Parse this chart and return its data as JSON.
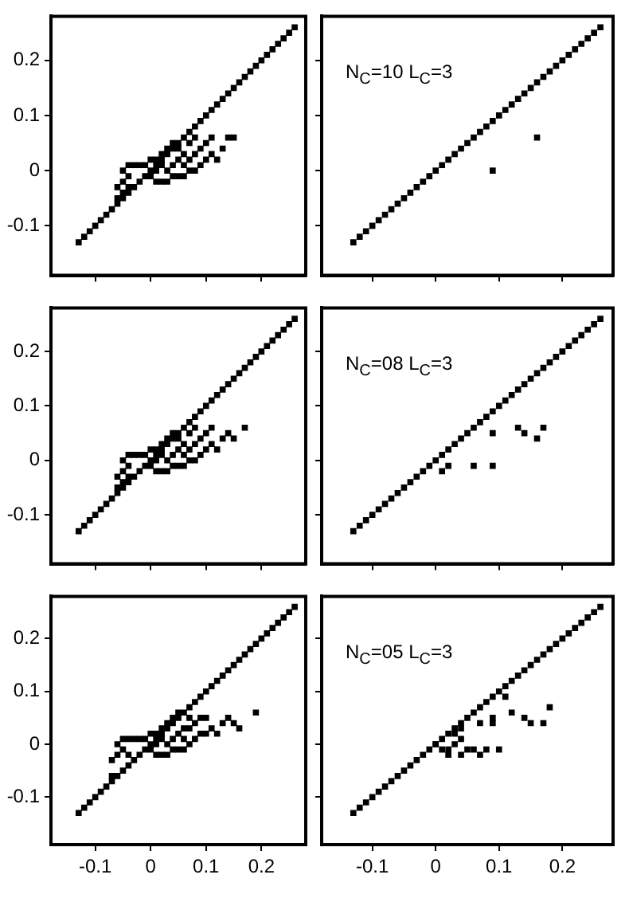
{
  "chart_data": [
    {
      "type": "scatter",
      "marker": "square",
      "tick_labels": "y",
      "grid": false,
      "xlim": [
        -0.18,
        0.28
      ],
      "ylim": [
        -0.19,
        0.28
      ],
      "xticks": [
        -0.1,
        0,
        0.1,
        0.2
      ],
      "yticks": [
        -0.1,
        0,
        0.1,
        0.2
      ],
      "series": [
        {
          "color": "#000000",
          "x": [
            -0.13,
            -0.12,
            -0.11,
            -0.1,
            -0.09,
            -0.08,
            -0.07,
            -0.06,
            -0.05,
            -0.04,
            -0.03,
            -0.02,
            -0.01,
            0,
            0.01,
            0.02,
            0.03,
            0.04,
            0.05,
            0.06,
            0.07,
            0.08,
            0.09,
            0.1,
            0.11,
            0.12,
            0.13,
            0.14,
            0.15,
            0.16,
            0.17,
            0.18,
            0.19,
            0.2,
            0.21,
            0.22,
            0.23,
            0.24,
            0.25,
            0.26,
            -0.06,
            -0.06,
            -0.05,
            -0.05,
            -0.05,
            -0.04,
            -0.04,
            -0.04,
            -0.03,
            -0.02,
            -0.01,
            0,
            0,
            0.01,
            0.01,
            0.01,
            0.02,
            0.02,
            0.02,
            0.03,
            0.03,
            0.03,
            0.04,
            0.04,
            0.04,
            0.05,
            0.05,
            0.05,
            0.06,
            0.06,
            0.06,
            0.07,
            0.07,
            0.07,
            0.08,
            0.08,
            0.08,
            0.09,
            0.09,
            0.1,
            0.1,
            0.11,
            0.11,
            0.12,
            0.13,
            0.14,
            0.15
          ],
          "values": [
            -0.13,
            -0.12,
            -0.11,
            -0.1,
            -0.09,
            -0.08,
            -0.07,
            -0.06,
            -0.05,
            -0.04,
            -0.03,
            -0.02,
            -0.01,
            0,
            0.01,
            0.02,
            0.03,
            0.04,
            0.05,
            0.06,
            0.07,
            0.08,
            0.09,
            0.1,
            0.11,
            0.12,
            0.13,
            0.14,
            0.15,
            0.16,
            0.17,
            0.18,
            0.19,
            0.2,
            0.21,
            0.22,
            0.23,
            0.24,
            0.25,
            0.26,
            -0.05,
            -0.03,
            -0.04,
            -0.02,
            0,
            -0.03,
            -0.01,
            0.01,
            0.01,
            0.01,
            0.01,
            -0.01,
            0.02,
            -0.02,
            0,
            0.02,
            -0.02,
            0.01,
            0.03,
            -0.02,
            0,
            0.04,
            -0.01,
            0.01,
            0.05,
            -0.01,
            0.02,
            0.04,
            -0.01,
            0.01,
            0.03,
            0,
            0.02,
            0.05,
            0,
            0.03,
            0.06,
            0.01,
            0.04,
            0.02,
            0.05,
            0.03,
            0.06,
            0.02,
            0.04,
            0.06,
            0.06
          ]
        }
      ]
    },
    {
      "type": "scatter",
      "marker": "square",
      "tick_labels": false,
      "grid": false,
      "xlim": [
        -0.18,
        0.28
      ],
      "ylim": [
        -0.19,
        0.28
      ],
      "xticks": [
        -0.1,
        0,
        0.1,
        0.2
      ],
      "yticks": [
        -0.1,
        0,
        0.1,
        0.2
      ],
      "annotations": [
        "N$_{C}$=10 L$_{C}$=3"
      ],
      "series": [
        {
          "color": "#000000",
          "x": [
            -0.13,
            -0.12,
            -0.11,
            -0.1,
            -0.09,
            -0.08,
            -0.07,
            -0.06,
            -0.05,
            -0.04,
            -0.03,
            -0.02,
            -0.01,
            0,
            0.01,
            0.02,
            0.03,
            0.04,
            0.05,
            0.06,
            0.07,
            0.08,
            0.09,
            0.1,
            0.11,
            0.12,
            0.13,
            0.14,
            0.15,
            0.16,
            0.17,
            0.18,
            0.19,
            0.2,
            0.21,
            0.22,
            0.23,
            0.24,
            0.25,
            0.26,
            0.09,
            0.16
          ],
          "values": [
            -0.13,
            -0.12,
            -0.11,
            -0.1,
            -0.09,
            -0.08,
            -0.07,
            -0.06,
            -0.05,
            -0.04,
            -0.03,
            -0.02,
            -0.01,
            0,
            0.01,
            0.02,
            0.03,
            0.04,
            0.05,
            0.06,
            0.07,
            0.08,
            0.09,
            0.1,
            0.11,
            0.12,
            0.13,
            0.14,
            0.15,
            0.16,
            0.17,
            0.18,
            0.19,
            0.2,
            0.21,
            0.22,
            0.23,
            0.24,
            0.25,
            0.26,
            0,
            0.06
          ]
        }
      ]
    },
    {
      "type": "scatter",
      "marker": "square",
      "tick_labels": "y",
      "grid": false,
      "xlim": [
        -0.18,
        0.28
      ],
      "ylim": [
        -0.19,
        0.28
      ],
      "xticks": [
        -0.1,
        0,
        0.1,
        0.2
      ],
      "yticks": [
        -0.1,
        0,
        0.1,
        0.2
      ],
      "series": [
        {
          "color": "#000000",
          "x": [
            -0.13,
            -0.12,
            -0.11,
            -0.1,
            -0.09,
            -0.08,
            -0.07,
            -0.06,
            -0.05,
            -0.04,
            -0.03,
            -0.02,
            -0.01,
            0,
            0.01,
            0.02,
            0.03,
            0.04,
            0.05,
            0.06,
            0.07,
            0.08,
            0.09,
            0.1,
            0.11,
            0.12,
            0.13,
            0.14,
            0.15,
            0.16,
            0.17,
            0.18,
            0.19,
            0.2,
            0.21,
            0.22,
            0.23,
            0.24,
            0.25,
            0.26,
            -0.06,
            -0.06,
            -0.05,
            -0.05,
            -0.05,
            -0.04,
            -0.04,
            -0.04,
            -0.03,
            -0.02,
            -0.01,
            0,
            0,
            0.01,
            0.01,
            0.01,
            0.02,
            0.02,
            0.02,
            0.03,
            0.03,
            0.03,
            0.04,
            0.04,
            0.04,
            0.05,
            0.05,
            0.05,
            0.06,
            0.06,
            0.06,
            0.07,
            0.07,
            0.07,
            0.08,
            0.08,
            0.08,
            0.09,
            0.09,
            0.1,
            0.1,
            0.11,
            0.11,
            0.12,
            0.13,
            0.14,
            0.15,
            0.17
          ],
          "values": [
            -0.13,
            -0.12,
            -0.11,
            -0.1,
            -0.09,
            -0.08,
            -0.07,
            -0.06,
            -0.05,
            -0.04,
            -0.03,
            -0.02,
            -0.01,
            0,
            0.01,
            0.02,
            0.03,
            0.04,
            0.05,
            0.06,
            0.07,
            0.08,
            0.09,
            0.1,
            0.11,
            0.12,
            0.13,
            0.14,
            0.15,
            0.16,
            0.17,
            0.18,
            0.19,
            0.2,
            0.21,
            0.22,
            0.23,
            0.24,
            0.25,
            0.26,
            -0.05,
            -0.03,
            -0.04,
            -0.02,
            0,
            -0.03,
            -0.01,
            0.01,
            0.01,
            0.01,
            0.01,
            -0.01,
            0.02,
            -0.02,
            0,
            0.02,
            -0.02,
            0.01,
            0.03,
            -0.02,
            0,
            0.04,
            -0.01,
            0.01,
            0.05,
            -0.01,
            0.02,
            0.04,
            -0.01,
            0.01,
            0.03,
            0,
            0.02,
            0.05,
            0,
            0.03,
            0.06,
            0.01,
            0.04,
            0.02,
            0.05,
            0.03,
            0.06,
            0.02,
            0.04,
            0.05,
            0.04,
            0.06
          ]
        }
      ]
    },
    {
      "type": "scatter",
      "marker": "square",
      "tick_labels": false,
      "grid": false,
      "xlim": [
        -0.18,
        0.28
      ],
      "ylim": [
        -0.19,
        0.28
      ],
      "xticks": [
        -0.1,
        0,
        0.1,
        0.2
      ],
      "yticks": [
        -0.1,
        0,
        0.1,
        0.2
      ],
      "annotations": [
        "N$_{C}$=08 L$_{C}$=3"
      ],
      "series": [
        {
          "color": "#000000",
          "x": [
            -0.13,
            -0.12,
            -0.11,
            -0.1,
            -0.09,
            -0.08,
            -0.07,
            -0.06,
            -0.05,
            -0.04,
            -0.03,
            -0.02,
            -0.01,
            0,
            0.01,
            0.02,
            0.03,
            0.04,
            0.05,
            0.06,
            0.07,
            0.08,
            0.09,
            0.1,
            0.11,
            0.12,
            0.13,
            0.14,
            0.15,
            0.16,
            0.17,
            0.18,
            0.19,
            0.2,
            0.21,
            0.22,
            0.23,
            0.24,
            0.25,
            0.26,
            0.01,
            0.02,
            0.06,
            0.09,
            0.09,
            0.13,
            0.14,
            0.16,
            0.17
          ],
          "values": [
            -0.13,
            -0.12,
            -0.11,
            -0.1,
            -0.09,
            -0.08,
            -0.07,
            -0.06,
            -0.05,
            -0.04,
            -0.03,
            -0.02,
            -0.01,
            0,
            0.01,
            0.02,
            0.03,
            0.04,
            0.05,
            0.06,
            0.07,
            0.08,
            0.09,
            0.1,
            0.11,
            0.12,
            0.13,
            0.14,
            0.15,
            0.16,
            0.17,
            0.18,
            0.19,
            0.2,
            0.21,
            0.22,
            0.23,
            0.24,
            0.25,
            0.26,
            -0.02,
            -0.01,
            -0.01,
            -0.01,
            0.05,
            0.06,
            0.05,
            0.04,
            0.06
          ]
        }
      ]
    },
    {
      "type": "scatter",
      "marker": "square",
      "grid": false,
      "xlim": [
        -0.18,
        0.28
      ],
      "ylim": [
        -0.19,
        0.28
      ],
      "xticks": [
        -0.1,
        0,
        0.1,
        0.2
      ],
      "yticks": [
        -0.1,
        0,
        0.1,
        0.2
      ],
      "series": [
        {
          "color": "#000000",
          "x": [
            -0.13,
            -0.12,
            -0.11,
            -0.1,
            -0.09,
            -0.08,
            -0.07,
            -0.06,
            -0.05,
            -0.04,
            -0.03,
            -0.02,
            -0.01,
            0,
            0.01,
            0.02,
            0.03,
            0.04,
            0.05,
            0.06,
            0.07,
            0.08,
            0.09,
            0.1,
            0.11,
            0.12,
            0.13,
            0.14,
            0.15,
            0.16,
            0.17,
            0.18,
            0.19,
            0.2,
            0.21,
            0.22,
            0.23,
            0.24,
            0.25,
            0.26,
            -0.07,
            -0.07,
            -0.06,
            -0.06,
            -0.05,
            -0.05,
            -0.04,
            -0.04,
            -0.03,
            -0.02,
            -0.01,
            0,
            0,
            0.01,
            0.01,
            0.01,
            0.02,
            0.02,
            0.02,
            0.03,
            0.03,
            0.03,
            0.04,
            0.04,
            0.04,
            0.05,
            0.05,
            0.05,
            0.06,
            0.06,
            0.06,
            0.07,
            0.07,
            0.07,
            0.08,
            0.08,
            0.09,
            0.09,
            0.1,
            0.1,
            0.11,
            0.12,
            0.13,
            0.14,
            0.15,
            0.16,
            0.19
          ],
          "values": [
            -0.13,
            -0.12,
            -0.11,
            -0.1,
            -0.09,
            -0.08,
            -0.07,
            -0.06,
            -0.05,
            -0.04,
            -0.03,
            -0.02,
            -0.01,
            0,
            0.01,
            0.02,
            0.03,
            0.04,
            0.05,
            0.06,
            0.07,
            0.08,
            0.09,
            0.1,
            0.11,
            0.12,
            0.13,
            0.14,
            0.15,
            0.16,
            0.17,
            0.18,
            0.19,
            0.2,
            0.21,
            0.22,
            0.23,
            0.24,
            0.25,
            0.26,
            -0.06,
            -0.03,
            -0.02,
            0,
            -0.01,
            0.01,
            -0.02,
            0.01,
            0.01,
            0.01,
            0.01,
            -0.01,
            0.02,
            -0.02,
            0,
            0.02,
            -0.02,
            0.01,
            0.03,
            -0.02,
            0,
            0.04,
            -0.01,
            0.01,
            0.05,
            -0.01,
            0.02,
            0.06,
            -0.01,
            0.01,
            0.03,
            0,
            0.03,
            0.05,
            0.01,
            0.04,
            0.02,
            0.05,
            0.02,
            0.05,
            0.03,
            0.02,
            0.04,
            0.05,
            0.04,
            0.03,
            0.06
          ]
        }
      ]
    },
    {
      "type": "scatter",
      "marker": "square",
      "tick_labels": "x",
      "grid": false,
      "xlim": [
        -0.18,
        0.28
      ],
      "ylim": [
        -0.19,
        0.28
      ],
      "xticks": [
        -0.1,
        0,
        0.1,
        0.2
      ],
      "yticks": [
        -0.1,
        0,
        0.1,
        0.2
      ],
      "annotations": [
        "N$_{C}$=05 L$_{C}$=3"
      ],
      "series": [
        {
          "color": "#000000",
          "x": [
            -0.13,
            -0.12,
            -0.11,
            -0.1,
            -0.09,
            -0.08,
            -0.07,
            -0.06,
            -0.05,
            -0.04,
            -0.03,
            -0.02,
            -0.01,
            0,
            0.01,
            0.02,
            0.03,
            0.04,
            0.05,
            0.06,
            0.07,
            0.08,
            0.09,
            0.1,
            0.11,
            0.12,
            0.13,
            0.14,
            0.15,
            0.16,
            0.17,
            0.18,
            0.19,
            0.2,
            0.21,
            0.22,
            0.23,
            0.24,
            0.25,
            0.26,
            0.11,
            0.09,
            0.07,
            0.09,
            0.12,
            0.14,
            0.15,
            0.17,
            0.18,
            0,
            0.01,
            0.02,
            0.02,
            0.03,
            0.04,
            0.04,
            0.05,
            0.06,
            0.07,
            0.08,
            0.1,
            0.03,
            0.04
          ],
          "values": [
            -0.13,
            -0.12,
            -0.11,
            -0.1,
            -0.09,
            -0.08,
            -0.07,
            -0.06,
            -0.05,
            -0.04,
            -0.03,
            -0.02,
            -0.01,
            0,
            0.01,
            0.02,
            0.03,
            0.04,
            0.05,
            0.06,
            0.07,
            0.08,
            0.09,
            0.1,
            0.11,
            0.12,
            0.13,
            0.14,
            0.15,
            0.16,
            0.17,
            0.18,
            0.19,
            0.2,
            0.21,
            0.22,
            0.23,
            0.24,
            0.25,
            0.26,
            0.09,
            0.05,
            0.04,
            0.04,
            0.06,
            0.05,
            0.04,
            0.04,
            0.07,
            0,
            -0.01,
            -0.01,
            -0.02,
            0,
            0.01,
            -0.02,
            -0.01,
            -0.01,
            -0.02,
            -0.01,
            -0.01,
            0.02,
            0.03
          ]
        }
      ]
    }
  ]
}
